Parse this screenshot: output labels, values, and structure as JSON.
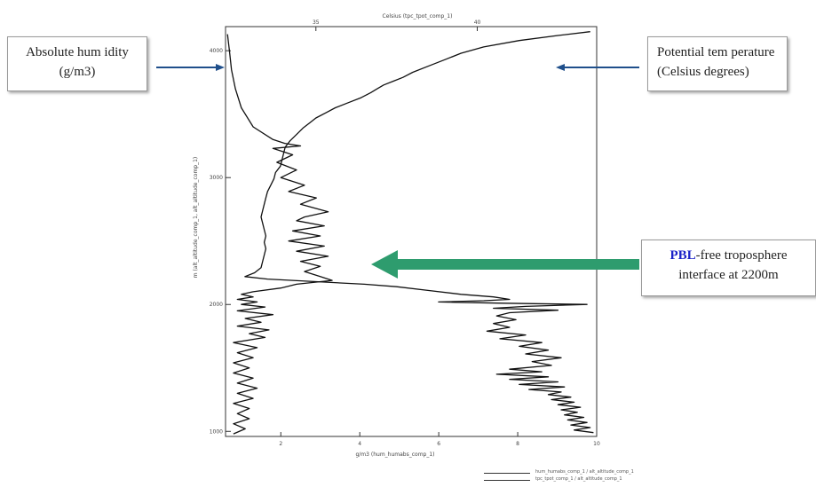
{
  "chart_data": {
    "type": "line",
    "top_axis": {
      "label": "Celsius (tpc_tpot_comp_1)",
      "ticks": [
        35,
        40
      ],
      "range": [
        32.2,
        43.7
      ]
    },
    "bottom_axis": {
      "label": "g/m3 (hum_humabs_comp_1)",
      "ticks": [
        2,
        4,
        6,
        8,
        10
      ],
      "range": [
        0.6,
        10
      ]
    },
    "left_axis": {
      "label": "m (alt_altitude_comp_1, alt_altitude_comp_1)",
      "ticks": [
        1000,
        2000,
        3000,
        4000
      ],
      "range": [
        960,
        4190
      ]
    },
    "grid": false,
    "series": [
      {
        "name": "hum_humabs_comp_1 / alt_altitude_comp_1",
        "axis": "bottom",
        "points": [
          [
            0.65,
            4130
          ],
          [
            0.7,
            4000
          ],
          [
            0.75,
            3850
          ],
          [
            0.85,
            3700
          ],
          [
            1.0,
            3550
          ],
          [
            1.3,
            3400
          ],
          [
            1.8,
            3300
          ],
          [
            2.1,
            3270
          ],
          [
            2.5,
            3250
          ],
          [
            1.8,
            3230
          ],
          [
            2.3,
            3180
          ],
          [
            1.9,
            3120
          ],
          [
            2.4,
            3060
          ],
          [
            2.0,
            3000
          ],
          [
            2.6,
            2940
          ],
          [
            2.2,
            2890
          ],
          [
            2.9,
            2840
          ],
          [
            2.5,
            2790
          ],
          [
            3.2,
            2730
          ],
          [
            2.6,
            2690
          ],
          [
            2.4,
            2660
          ],
          [
            3.1,
            2620
          ],
          [
            2.3,
            2580
          ],
          [
            3.0,
            2540
          ],
          [
            2.2,
            2500
          ],
          [
            3.1,
            2460
          ],
          [
            2.4,
            2420
          ],
          [
            3.2,
            2380
          ],
          [
            2.5,
            2340
          ],
          [
            3.0,
            2300
          ],
          [
            2.6,
            2260
          ],
          [
            3.0,
            2220
          ],
          [
            3.3,
            2190
          ],
          [
            2.4,
            2160
          ],
          [
            2.0,
            2130
          ],
          [
            1.3,
            2100
          ],
          [
            1.0,
            2080
          ],
          [
            1.3,
            2060
          ],
          [
            0.9,
            2040
          ],
          [
            1.4,
            2020
          ],
          [
            1.0,
            2000
          ],
          [
            1.6,
            1980
          ],
          [
            0.9,
            1950
          ],
          [
            1.8,
            1920
          ],
          [
            1.1,
            1890
          ],
          [
            1.5,
            1860
          ],
          [
            0.9,
            1830
          ],
          [
            1.7,
            1800
          ],
          [
            1.2,
            1770
          ],
          [
            1.6,
            1740
          ],
          [
            0.8,
            1700
          ],
          [
            1.4,
            1660
          ],
          [
            0.9,
            1620
          ],
          [
            1.3,
            1580
          ],
          [
            0.8,
            1540
          ],
          [
            1.2,
            1500
          ],
          [
            0.8,
            1460
          ],
          [
            1.3,
            1420
          ],
          [
            0.9,
            1380
          ],
          [
            1.4,
            1340
          ],
          [
            0.9,
            1300
          ],
          [
            1.3,
            1260
          ],
          [
            0.8,
            1220
          ],
          [
            1.2,
            1180
          ],
          [
            0.9,
            1140
          ],
          [
            1.2,
            1100
          ],
          [
            0.8,
            1060
          ],
          [
            1.1,
            1020
          ],
          [
            0.8,
            980
          ]
        ]
      },
      {
        "name": "tpc_tpot_comp_1 / alt_altitude_comp_1",
        "axis": "top",
        "points": [
          [
            43.5,
            4150
          ],
          [
            42.5,
            4120
          ],
          [
            41.3,
            4080
          ],
          [
            40.2,
            4030
          ],
          [
            39.5,
            3980
          ],
          [
            39.0,
            3930
          ],
          [
            38.5,
            3880
          ],
          [
            38.0,
            3830
          ],
          [
            37.7,
            3790
          ],
          [
            37.4,
            3760
          ],
          [
            37.1,
            3730
          ],
          [
            36.9,
            3700
          ],
          [
            36.7,
            3670
          ],
          [
            36.4,
            3630
          ],
          [
            36.0,
            3590
          ],
          [
            35.6,
            3550
          ],
          [
            35.3,
            3510
          ],
          [
            35.0,
            3470
          ],
          [
            34.8,
            3430
          ],
          [
            34.6,
            3390
          ],
          [
            34.4,
            3340
          ],
          [
            34.2,
            3290
          ],
          [
            34.05,
            3240
          ],
          [
            34.0,
            3190
          ],
          [
            33.95,
            3140
          ],
          [
            33.9,
            3090
          ],
          [
            33.75,
            3040
          ],
          [
            33.7,
            2990
          ],
          [
            33.6,
            2940
          ],
          [
            33.5,
            2890
          ],
          [
            33.45,
            2840
          ],
          [
            33.4,
            2790
          ],
          [
            33.35,
            2740
          ],
          [
            33.3,
            2690
          ],
          [
            33.35,
            2640
          ],
          [
            33.4,
            2590
          ],
          [
            33.45,
            2540
          ],
          [
            33.4,
            2490
          ],
          [
            33.45,
            2440
          ],
          [
            33.4,
            2390
          ],
          [
            33.35,
            2340
          ],
          [
            33.3,
            2290
          ],
          [
            33.1,
            2250
          ],
          [
            32.8,
            2220
          ],
          [
            33.5,
            2200
          ],
          [
            35.0,
            2180
          ],
          [
            36.5,
            2160
          ],
          [
            37.5,
            2140
          ],
          [
            38.5,
            2110
          ],
          [
            39.5,
            2080
          ],
          [
            40.5,
            2060
          ],
          [
            41.0,
            2040
          ],
          [
            40.2,
            2030
          ],
          [
            38.8,
            2020
          ],
          [
            40.8,
            2010
          ],
          [
            43.4,
            2000
          ],
          [
            41.5,
            1985
          ],
          [
            40.5,
            1970
          ],
          [
            42.5,
            1955
          ],
          [
            41.0,
            1935
          ],
          [
            40.6,
            1910
          ],
          [
            41.2,
            1880
          ],
          [
            40.5,
            1850
          ],
          [
            41.0,
            1820
          ],
          [
            40.3,
            1790
          ],
          [
            41.5,
            1760
          ],
          [
            40.7,
            1730
          ],
          [
            42.0,
            1700
          ],
          [
            41.3,
            1670
          ],
          [
            42.2,
            1640
          ],
          [
            41.5,
            1610
          ],
          [
            42.6,
            1580
          ],
          [
            41.7,
            1550
          ],
          [
            42.3,
            1520
          ],
          [
            41.0,
            1490
          ],
          [
            42.0,
            1470
          ],
          [
            40.6,
            1450
          ],
          [
            42.2,
            1430
          ],
          [
            41.0,
            1410
          ],
          [
            42.5,
            1390
          ],
          [
            41.3,
            1370
          ],
          [
            42.7,
            1350
          ],
          [
            41.6,
            1330
          ],
          [
            42.6,
            1310
          ],
          [
            42.2,
            1290
          ],
          [
            42.9,
            1270
          ],
          [
            42.3,
            1250
          ],
          [
            43.0,
            1230
          ],
          [
            42.5,
            1210
          ],
          [
            43.2,
            1190
          ],
          [
            42.6,
            1170
          ],
          [
            43.1,
            1150
          ],
          [
            42.7,
            1130
          ],
          [
            43.3,
            1110
          ],
          [
            42.8,
            1090
          ],
          [
            43.4,
            1070
          ],
          [
            42.9,
            1050
          ],
          [
            43.5,
            1030
          ],
          [
            43.0,
            1010
          ],
          [
            43.6,
            990
          ]
        ]
      }
    ]
  },
  "callouts": {
    "humidity": {
      "line1": "Absolute hum idity",
      "line2": "(g/m3)"
    },
    "ptemp": {
      "line1": "Potential tem perature",
      "line2": "(Celsius degrees)"
    },
    "pbl": {
      "strong": "PBL",
      "rest": "-free troposphere",
      "line2": "interface at 2200m"
    }
  },
  "colors": {
    "arrow_blue": "#1f4f8b",
    "arrow_green": "#2e9c6e",
    "pbl_text": "#1b22c8",
    "plot_line": "#111111"
  }
}
